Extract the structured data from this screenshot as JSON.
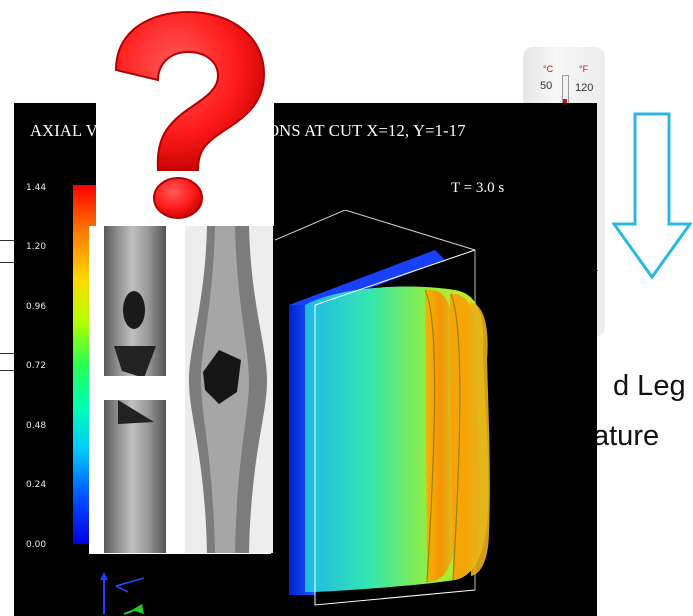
{
  "background_text": {
    "line1": "d Leg",
    "line2": "ature"
  },
  "thermometer": {
    "unit_c": "°C",
    "unit_f": "°F",
    "label_c": "50",
    "label_f": "120"
  },
  "simulation": {
    "title": "AXIAL VELOCITY DISTRIBUTIONS AT CUT  X=12, Y=1-17",
    "time_label": "T = 3.0 s",
    "colorbar_ticks": [
      "1.44",
      "1.20",
      "0.96",
      "0.72",
      "0.48",
      "0.24",
      "0.00"
    ]
  },
  "icons": {
    "question": "question-mark-icon",
    "arrow": "down-arrow-icon"
  },
  "colors": {
    "question_mark": "#ff1a1a",
    "arrow_outline": "#2bb8e6",
    "panel_background": "#000000"
  }
}
